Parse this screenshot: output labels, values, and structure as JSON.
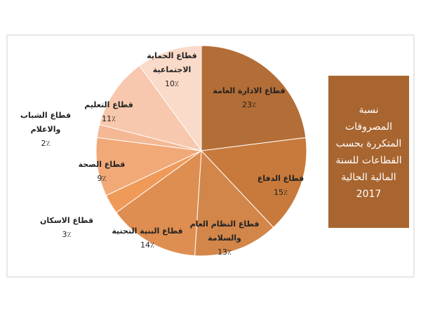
{
  "chart_data": {
    "type": "pie",
    "title": "نسبة المصروفات المتكررة بحسب القطاعات للسنة المالية الحالية 2017",
    "categories": [
      "قطاع الادارة العامة",
      "قطاع الدفاع",
      "قطاع النظام العام والسلامة",
      "قطاع البنية التحتية",
      "قطاع الاسكان",
      "قطاع الصحة",
      "قطاع الشباب والاعلام",
      "قطاع التعليم",
      "قطاع الحماية الاجتماعية"
    ],
    "values": [
      23,
      15,
      13,
      14,
      3,
      9,
      2,
      11,
      10
    ],
    "value_labels": [
      "23٪",
      "15٪",
      "13٪",
      "14٪",
      "3٪",
      "9٪",
      "2٪",
      "11٪",
      "10٪"
    ],
    "colors": [
      "#b36d36",
      "#c77a3b",
      "#d3864a",
      "#de8e50",
      "#ef9a58",
      "#f2a978",
      "#f4b895",
      "#f7c8ad",
      "#fadac8"
    ]
  }
}
